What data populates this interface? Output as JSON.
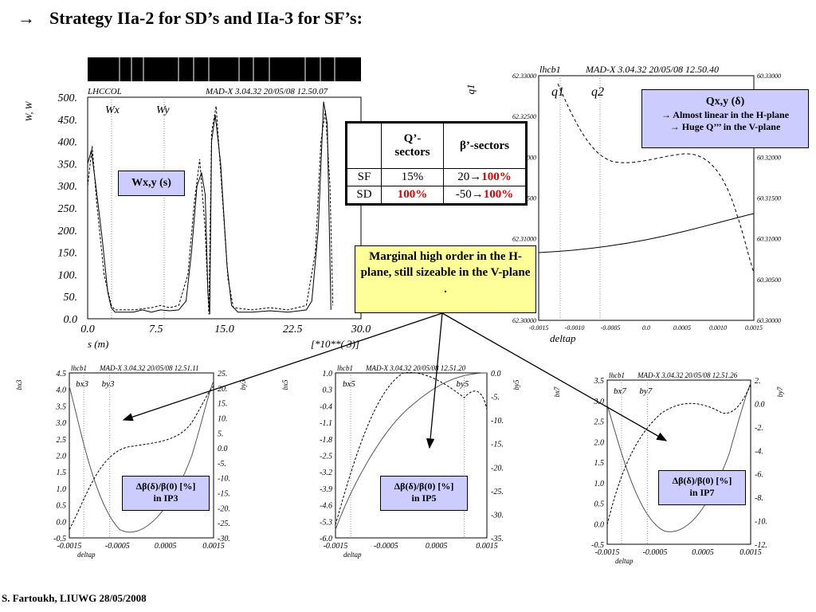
{
  "title": {
    "arrow": "→",
    "text": "Strategy IIa-2 for SD’s and IIa-3 for SF’s:"
  },
  "footer": "S. Fartoukh, LIUWG 28/05/2008",
  "beta_plot": {
    "header_left": "LHCCOL",
    "header_right": "MAD-X 3.04.32  20/05/08 12.50.07",
    "ylabel": "W, W",
    "xlabel": "s (m)",
    "xunit": "[*10**( 3)]",
    "series_labels": [
      "Wx",
      "Wy"
    ],
    "yticks": [
      "500.",
      "450.",
      "400.",
      "350.",
      "300.",
      "250.",
      "200.",
      "150.",
      "100.",
      "50.",
      "0.0"
    ],
    "xticks": [
      "0.0",
      "7.5",
      "15.0",
      "22.5",
      "30.0"
    ],
    "box_label": "Wx,y (s)"
  },
  "tune_plot": {
    "header_left": "lhcb1",
    "header_right": "MAD-X 3.04.32  20/05/08 12.50.40",
    "ylabel_left": "q1",
    "xlabel": "deltap",
    "series_labels": [
      "q1",
      "q2"
    ],
    "yticks_left": [
      "62.33000",
      "62.32500",
      "62.32000",
      "62.31500",
      "62.31000",
      "62.30500",
      "62.30000"
    ],
    "yticks_right": [
      "60.33000",
      "60.32500",
      "60.32000",
      "60.31500",
      "60.31000",
      "60.30500",
      "60.30000"
    ],
    "xticks": [
      "-0.0015",
      "-0.0010",
      "-0.0005",
      "0.0",
      "0.0005",
      "0.0010",
      "0.0015"
    ],
    "box": {
      "title": "Qx,y (δ)",
      "line1": "→ Almost linear in the H-plane",
      "line2": "→ Huge Q’’’ in the V-plane"
    }
  },
  "table": {
    "headers": [
      "",
      "Q’-sectors",
      "β’-sectors"
    ],
    "rows": [
      {
        "label": "SF",
        "q": "15%",
        "b_prefix": "20→",
        "b_red": "100%"
      },
      {
        "label": "SD",
        "q_red": "100%",
        "b_prefix": "-50→",
        "b_red": "100%"
      }
    ]
  },
  "marginal_box": "Marginal high order in the H-plane, still sizeable in the V-plane .",
  "ip_plots": [
    {
      "header_left": "lhcb1",
      "header_right": "MAD-X 3.04.32  20/05/08 12.51.11",
      "ylabel_left": "bx3",
      "ylabel_right": "by3",
      "series_labels": [
        "bx3",
        "by3"
      ],
      "yticks_left": [
        "4.5",
        "4.0",
        "3.5",
        "3.0",
        "2.5",
        "2.0",
        "1.5",
        "1.0",
        "0.5",
        "0.0",
        "-0.5"
      ],
      "yticks_right": [
        "25.",
        "20.",
        "15.",
        "10.",
        "5.",
        "0.0",
        "-5.",
        "-10.",
        "-15.",
        "-20.",
        "-25.",
        "-30."
      ],
      "xticks": [
        "-0.0015",
        "-0.0005",
        "0.0005",
        "0.0015"
      ],
      "xlabel": "deltap",
      "box": {
        "line1": "Δβ(δ)/β(0) [%]",
        "line2": "in IP3"
      }
    },
    {
      "header_left": "lhcb1",
      "header_right": "MAD-X 3.04.32  20/05/08 12.51.20",
      "ylabel_left": "bx5",
      "ylabel_right": "by5",
      "series_labels": [
        "bx5",
        "by5"
      ],
      "yticks_left": [
        "1.0",
        "0.3",
        "-0.4",
        "-1.1",
        "-1.8",
        "-2.5",
        "-3.2",
        "-3.9",
        "-4.6",
        "-5.3",
        "-6.0"
      ],
      "yticks_right": [
        "0.0",
        "-5.",
        "-10.",
        "-15.",
        "-20.",
        "-25.",
        "-30.",
        "-35."
      ],
      "xticks": [
        "-0.0015",
        "-0.0005",
        "0.0005",
        "0.0015"
      ],
      "xlabel": "deltap",
      "box": {
        "line1": "Δβ(δ)/β(0) [%]",
        "line2": "in IP5"
      }
    },
    {
      "header_left": "lhcb1",
      "header_right": "MAD-X 3.04.32  20/05/08 12.51.26",
      "ylabel_left": "bx7",
      "ylabel_right": "by7",
      "series_labels": [
        "bx7",
        "by7"
      ],
      "yticks_left": [
        "3.5",
        "3.0",
        "2.5",
        "2.0",
        "1.5",
        "1.0",
        "0.5",
        "0.0",
        "-0.5"
      ],
      "yticks_right": [
        "2.",
        "0.0",
        "-2.",
        "-4.",
        "-6.",
        "-8.",
        "-10.",
        "-12."
      ],
      "xticks": [
        "-0.0015",
        "-0.0005",
        "0.0005",
        "0.0015"
      ],
      "xlabel": "deltap",
      "box": {
        "line1": "Δβ(δ)/β(0) [%]",
        "line2": "in IP7"
      }
    }
  ],
  "colors": {
    "note_fill": "#ccccff",
    "yellow_fill": "#ffff99",
    "red": "#e00000"
  }
}
